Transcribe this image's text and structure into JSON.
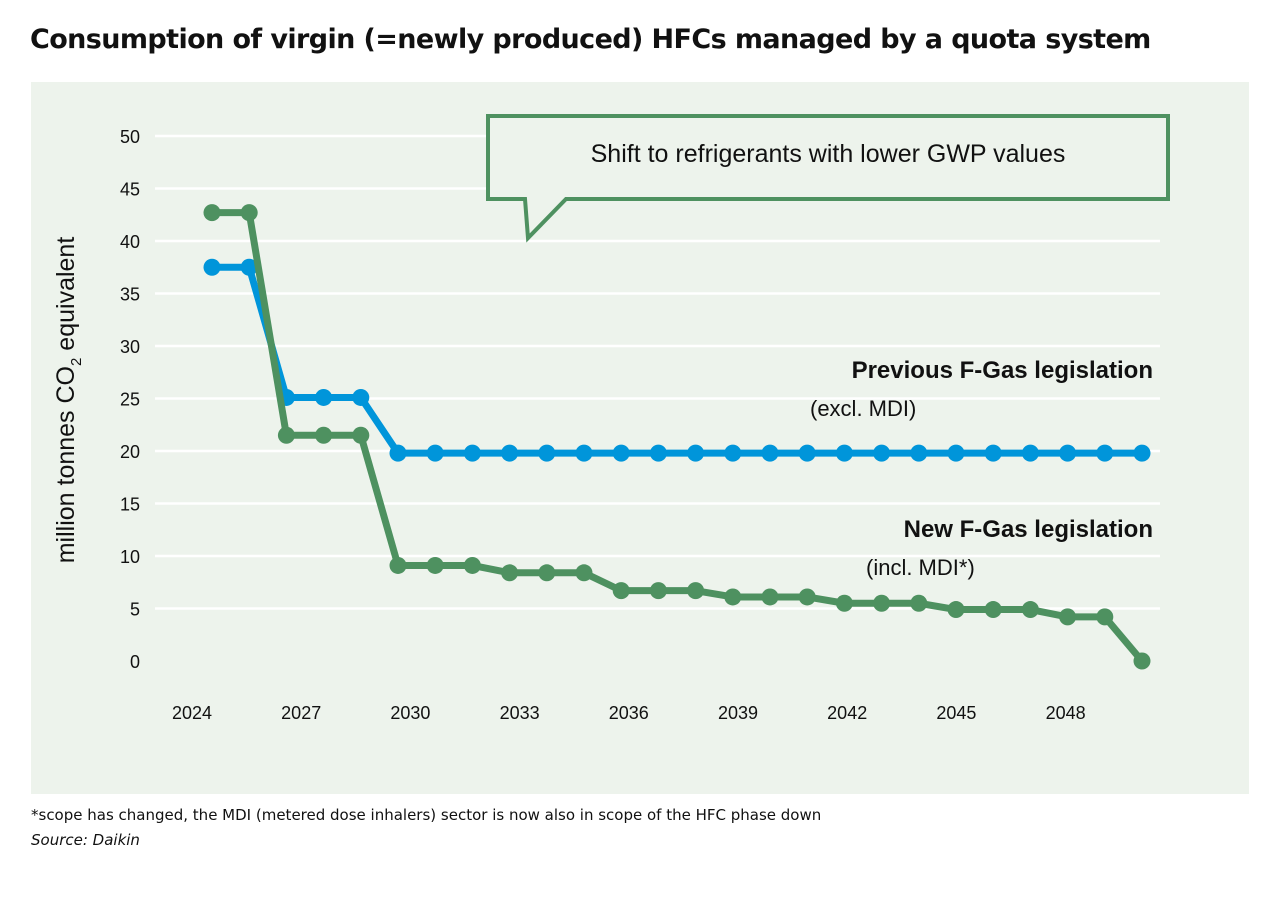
{
  "title": "Consumption of virgin (=newly produced) HFCs managed by a quota system",
  "callout": "Shift to refrigerants with lower GWP values",
  "footnote": "*scope has changed, the MDI (metered dose inhalers) sector is now also in scope of the HFC phase down",
  "source": "Source: Daikin",
  "colors": {
    "background": "#edf3ec",
    "previous": "#0095da",
    "new": "#4e9160"
  },
  "chart_data": {
    "type": "line",
    "ylabel_main": "million tonnes CO",
    "ylabel_sub": "2",
    "ylabel_end": " equivalent",
    "ylim": [
      0,
      50
    ],
    "yticks": [
      0,
      5,
      10,
      15,
      20,
      25,
      30,
      35,
      40,
      45,
      50
    ],
    "xticks": [
      "2024",
      "2027",
      "2030",
      "2033",
      "2036",
      "2039",
      "2042",
      "2045",
      "2048"
    ],
    "grid": true,
    "x": [
      2025,
      2026,
      2027,
      2028,
      2029,
      2030,
      2031,
      2032,
      2033,
      2034,
      2035,
      2036,
      2037,
      2038,
      2039,
      2040,
      2041,
      2042,
      2043,
      2044,
      2045,
      2046,
      2047,
      2048,
      2049,
      2050
    ],
    "series": [
      {
        "name": "Previous F-Gas legislation",
        "note": "(excl. MDI)",
        "color": "#0095da",
        "values": [
          37.5,
          37.5,
          25.1,
          25.1,
          25.1,
          19.8,
          19.8,
          19.8,
          19.8,
          19.8,
          19.8,
          19.8,
          19.8,
          19.8,
          19.8,
          19.8,
          19.8,
          19.8,
          19.8,
          19.8,
          19.8,
          19.8,
          19.8,
          19.8,
          19.8,
          19.8
        ]
      },
      {
        "name": "New F-Gas legislation",
        "note": "(incl. MDI*)",
        "color": "#4e9160",
        "values": [
          42.7,
          42.7,
          21.5,
          21.5,
          21.5,
          9.1,
          9.1,
          9.1,
          8.4,
          8.4,
          8.4,
          6.7,
          6.7,
          6.7,
          6.1,
          6.1,
          6.1,
          5.5,
          5.5,
          5.5,
          4.9,
          4.9,
          4.9,
          4.2,
          4.2,
          0
        ]
      }
    ]
  }
}
